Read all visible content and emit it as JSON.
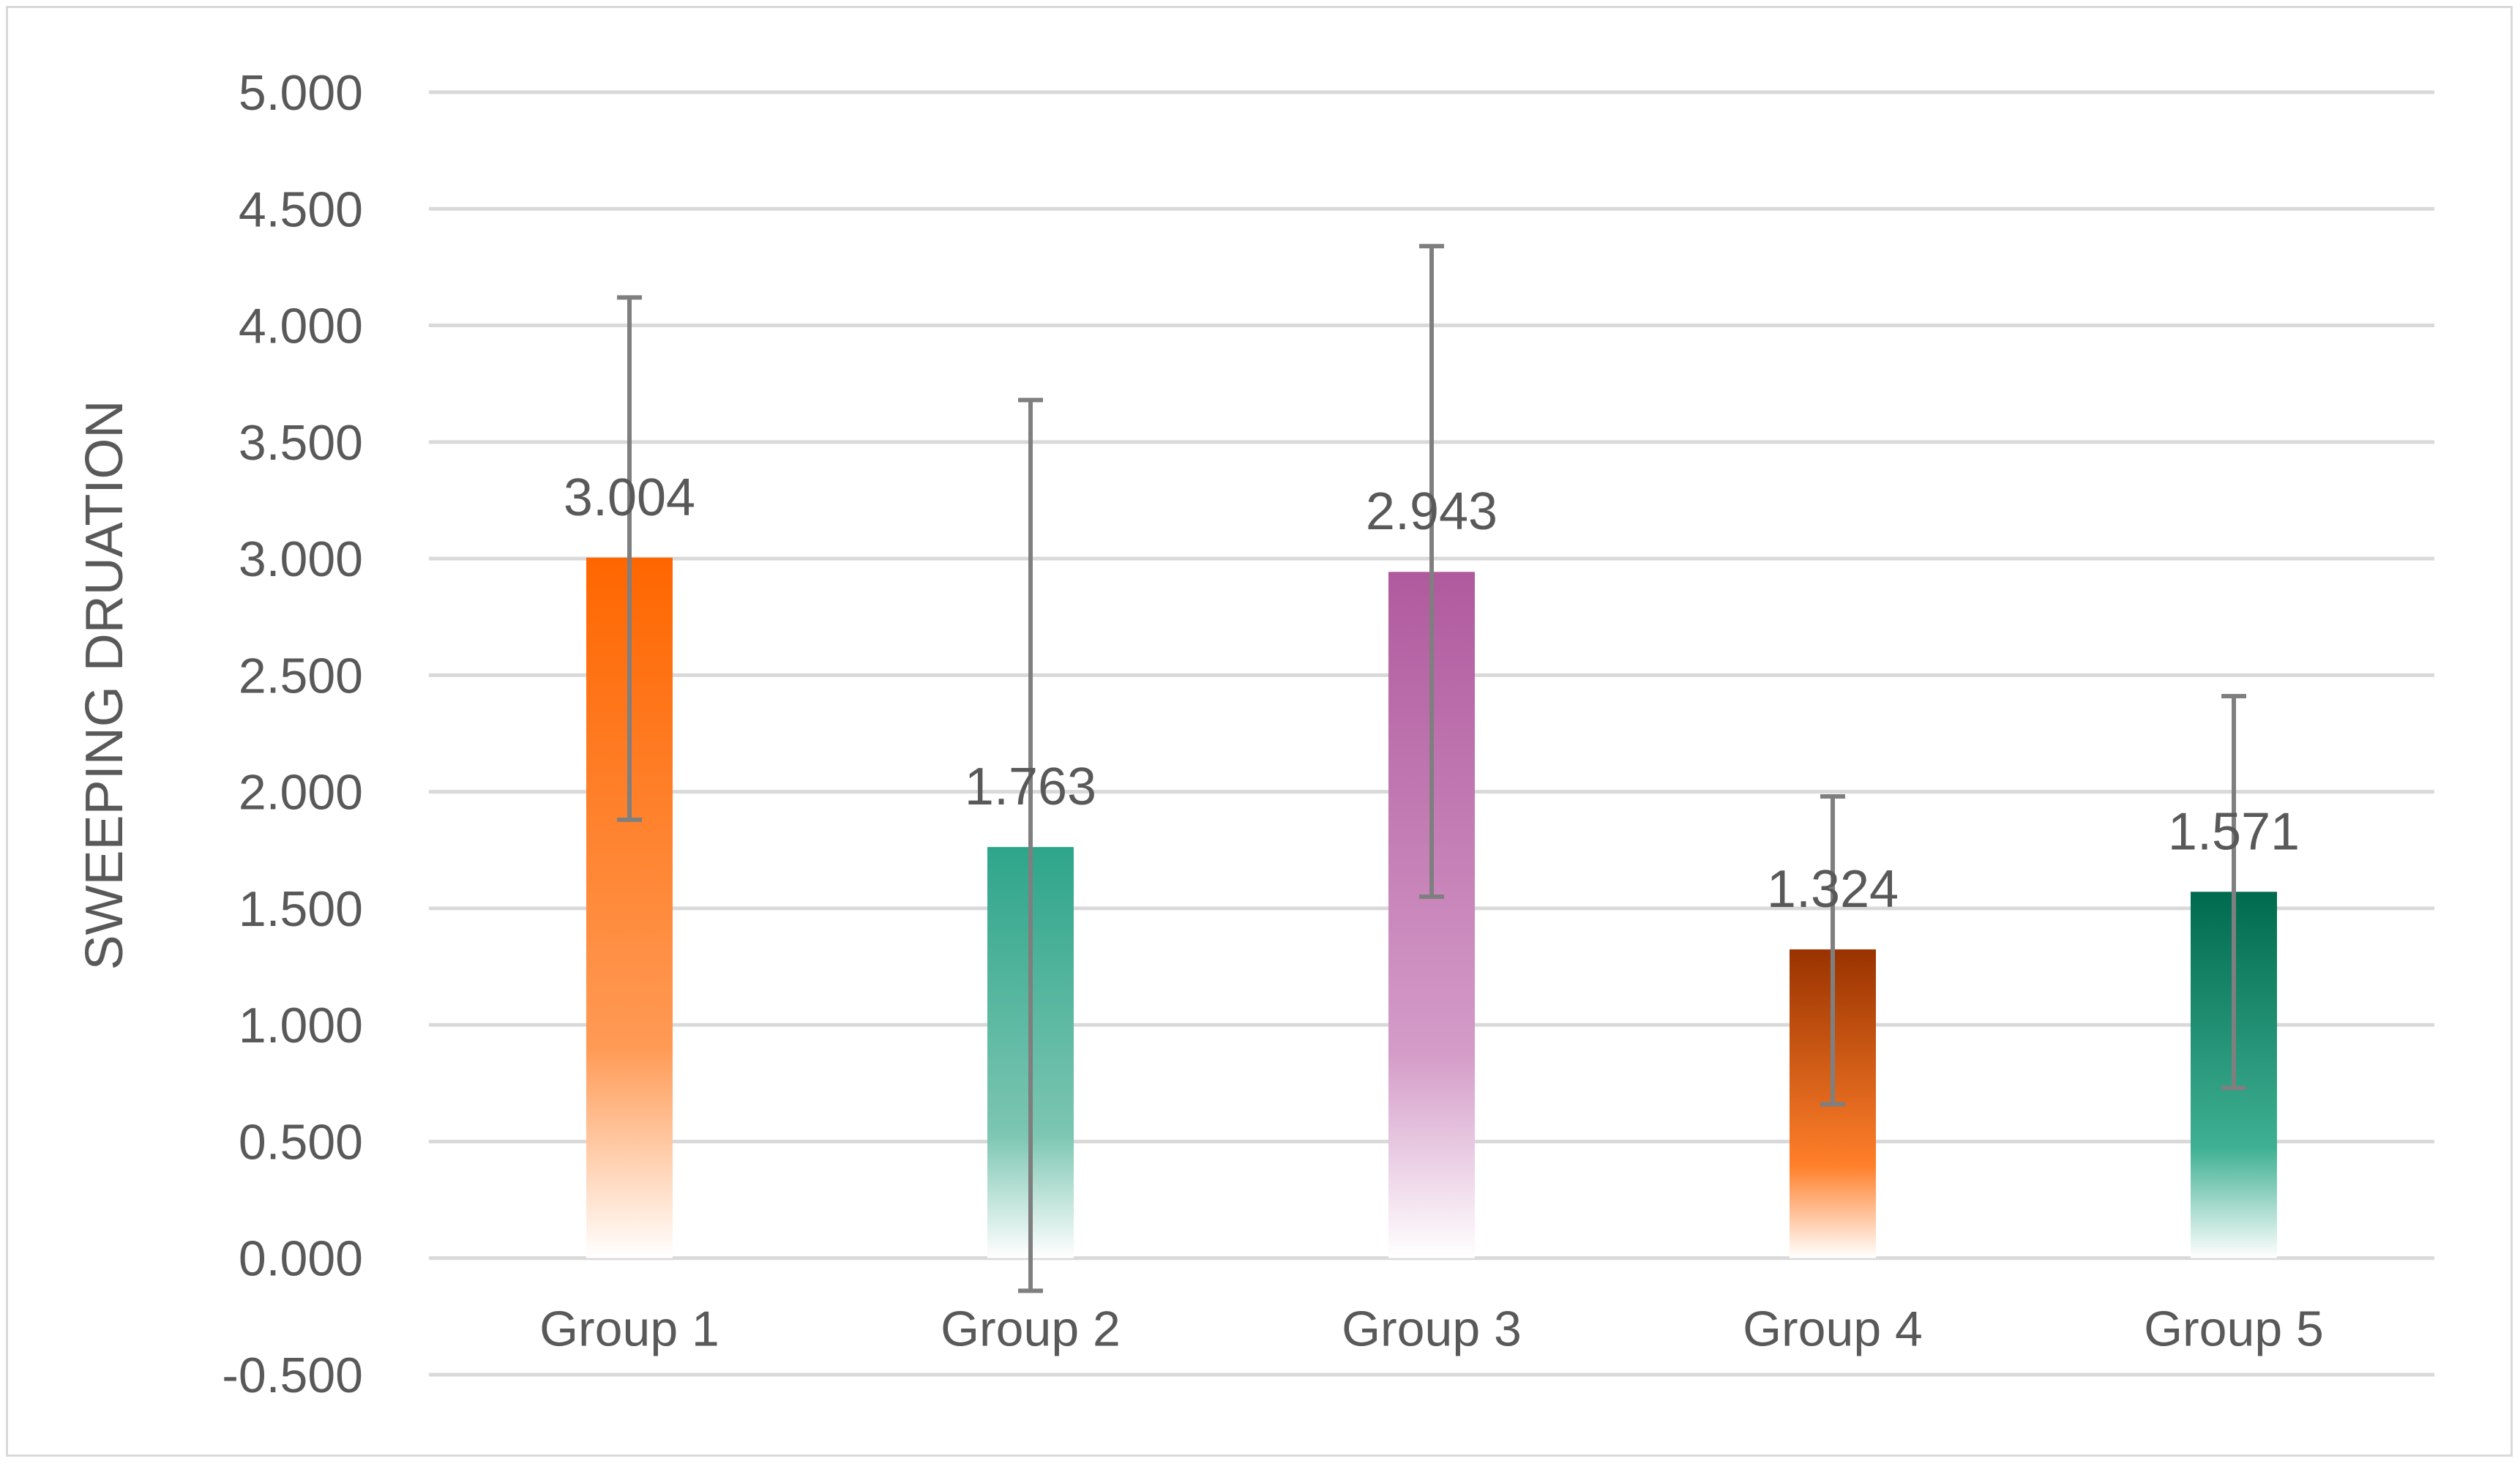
{
  "chart_data": {
    "type": "bar",
    "title": "",
    "xlabel": "",
    "ylabel": "SWEEPING DRUATION",
    "ylim": [
      -0.5,
      5.0
    ],
    "ytick_step": 0.5,
    "ytick_labels": [
      "-0.500",
      "0.000",
      "0.500",
      "1.000",
      "1.500",
      "2.000",
      "2.500",
      "3.000",
      "3.500",
      "4.000",
      "4.500",
      "5.000"
    ],
    "grid": true,
    "legend": "none",
    "categories": [
      "Group 1",
      "Group 2",
      "Group 3",
      "Group 4",
      "Group 5"
    ],
    "values": [
      3.004,
      1.763,
      2.943,
      1.324,
      1.571
    ],
    "data_labels": [
      "3.004",
      "1.763",
      "2.943",
      "1.324",
      "1.571"
    ],
    "error_low": [
      1.88,
      -0.14,
      1.55,
      0.66,
      0.73
    ],
    "error_high": [
      4.12,
      3.68,
      4.34,
      1.98,
      2.41
    ],
    "colors": [
      {
        "top": "#ff6600",
        "mid": "#ff9a55",
        "bottom": "#ffffff"
      },
      {
        "top": "#2ea58a",
        "mid": "#7cc6b2",
        "bottom": "#ffffff"
      },
      {
        "top": "#b05a9e",
        "mid": "#d49bc8",
        "bottom": "#ffffff"
      },
      {
        "top": "#993300",
        "mid": "#ff7f2a",
        "bottom": "#ffffff"
      },
      {
        "top": "#006a4e",
        "mid": "#3fb093",
        "bottom": "#ffffff"
      }
    ],
    "gridline_color": "#d9d9d9",
    "text_color": "#595959",
    "errorbar_color": "#7f7f7f"
  }
}
